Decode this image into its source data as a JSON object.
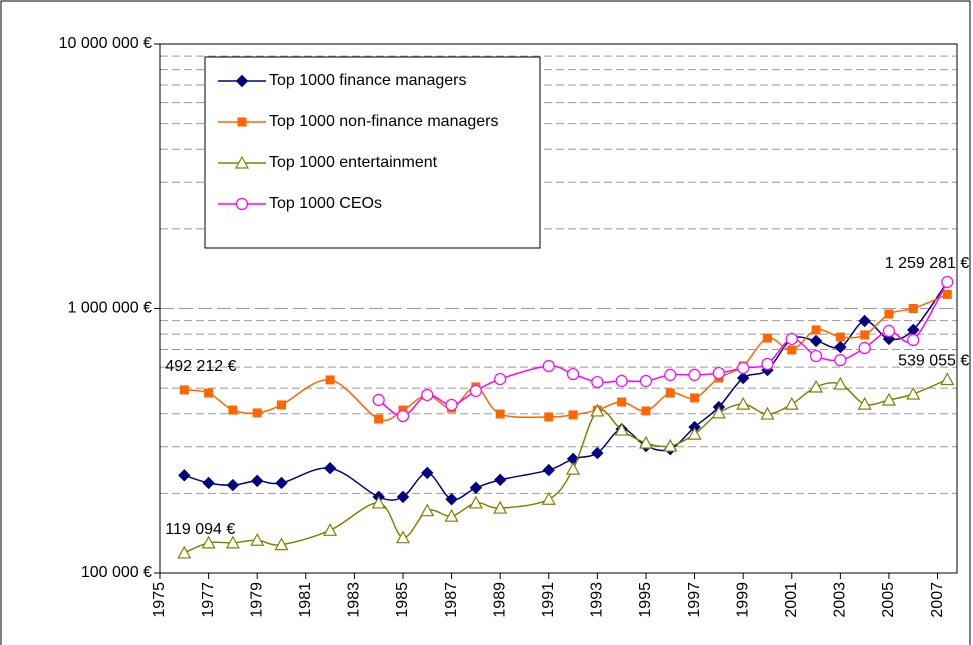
{
  "chart_data": {
    "type": "line",
    "log_y": true,
    "grid": true,
    "legend": "upper left",
    "xlim": [
      1975,
      2007.8
    ],
    "xticks": [
      1975,
      1977,
      1979,
      1981,
      1983,
      1985,
      1987,
      1989,
      1991,
      1993,
      1995,
      1997,
      1999,
      2001,
      2003,
      2005,
      2007
    ],
    "ylim": [
      100000,
      10000000
    ],
    "yticks": [
      {
        "value": 100000,
        "label": "100 000 €"
      },
      {
        "value": 1000000,
        "label": "1 000 000 €"
      },
      {
        "value": 10000000,
        "label": "10 000 000 €"
      }
    ],
    "minor_yticks": [
      200000,
      300000,
      400000,
      500000,
      600000,
      700000,
      800000,
      900000,
      2000000,
      3000000,
      4000000,
      5000000,
      6000000,
      7000000,
      8000000,
      9000000
    ],
    "series": [
      {
        "name": "Top 1000 finance managers",
        "color": "#000080",
        "marker": "diamond",
        "x": [
          1976,
          1977,
          1978,
          1979,
          1980,
          1982,
          1984,
          1985,
          1986,
          1987,
          1988,
          1989,
          1991,
          1992,
          1993,
          1994,
          1995,
          1996,
          1997,
          1998,
          1999,
          2000,
          2001,
          2002,
          2003,
          2004,
          2005,
          2006,
          2007.4
        ],
        "values": [
          234000,
          219000,
          215000,
          223000,
          219000,
          249000,
          194000,
          194000,
          239000,
          190000,
          210000,
          225000,
          245000,
          270000,
          284000,
          350000,
          302000,
          294000,
          356000,
          424000,
          546000,
          585000,
          767000,
          754000,
          715000,
          897000,
          767000,
          830000,
          1259281
        ],
        "value_labels": [
          null,
          null,
          null,
          null,
          null,
          null,
          null,
          null,
          null,
          null,
          null,
          null,
          null,
          null,
          null,
          null,
          null,
          null,
          null,
          null,
          null,
          null,
          null,
          null,
          null,
          null,
          null,
          null,
          "1 259 281 €"
        ]
      },
      {
        "name": "Top 1000 non-finance managers",
        "color": "#FF6600",
        "marker": "square",
        "x": [
          1976,
          1977,
          1978,
          1979,
          1980,
          1982,
          1984,
          1985,
          1986,
          1987,
          1988,
          1989,
          1991,
          1992,
          1993,
          1994,
          1995,
          1996,
          1997,
          1998,
          1999,
          2000,
          2001,
          2002,
          2003,
          2004,
          2005,
          2006,
          2007.4
        ],
        "values": [
          492212,
          479000,
          413000,
          403000,
          432000,
          537000,
          382000,
          413000,
          470000,
          420000,
          505000,
          399000,
          389000,
          396000,
          413000,
          443000,
          410000,
          479000,
          459000,
          546000,
          606000,
          773000,
          697000,
          830000,
          780000,
          794000,
          953000,
          1000000,
          1130000
        ],
        "value_labels": [
          "492 212 €",
          null,
          null,
          null,
          null,
          null,
          null,
          null,
          null,
          null,
          null,
          null,
          null,
          null,
          null,
          null,
          null,
          null,
          null,
          null,
          null,
          null,
          null,
          null,
          null,
          null,
          null,
          null,
          null
        ]
      },
      {
        "name": "Top 1000 entertainment",
        "color": "#808000",
        "marker": "triangle",
        "x": [
          1976,
          1977,
          1978,
          1979,
          1980,
          1982,
          1984,
          1985,
          1986,
          1987,
          1988,
          1989,
          1991,
          1992,
          1993,
          1994,
          1995,
          1996,
          1997,
          1998,
          1999,
          2000,
          2001,
          2002,
          2003,
          2004,
          2005,
          2006,
          2007.4
        ],
        "values": [
          119094,
          130000,
          130000,
          133000,
          128000,
          145000,
          184000,
          136000,
          172000,
          164000,
          184000,
          176000,
          190000,
          247000,
          410000,
          347000,
          310000,
          302000,
          335000,
          403000,
          435000,
          399000,
          435000,
          505000,
          518000,
          435000,
          451000,
          475000,
          539055
        ],
        "value_labels": [
          "119 094 €",
          null,
          null,
          null,
          null,
          null,
          null,
          null,
          null,
          null,
          null,
          null,
          null,
          null,
          null,
          null,
          null,
          null,
          null,
          null,
          null,
          null,
          null,
          null,
          null,
          null,
          null,
          null,
          "539 055 €"
        ]
      },
      {
        "name": "Top 1000 CEOs",
        "color": "#FF00FF",
        "marker": "circle",
        "x": [
          1984,
          1985,
          1986,
          1987,
          1988,
          1989,
          1991,
          1992,
          1993,
          1994,
          1995,
          1996,
          1997,
          1998,
          1999,
          2000,
          2001,
          2002,
          2003,
          2004,
          2005,
          2006,
          2007.4
        ],
        "values": [
          451000,
          392000,
          471000,
          432000,
          488000,
          541000,
          606000,
          565000,
          527000,
          532000,
          532000,
          561000,
          561000,
          570000,
          596000,
          617000,
          767000,
          661000,
          638000,
          709000,
          822000,
          760000,
          1260000
        ]
      }
    ]
  }
}
